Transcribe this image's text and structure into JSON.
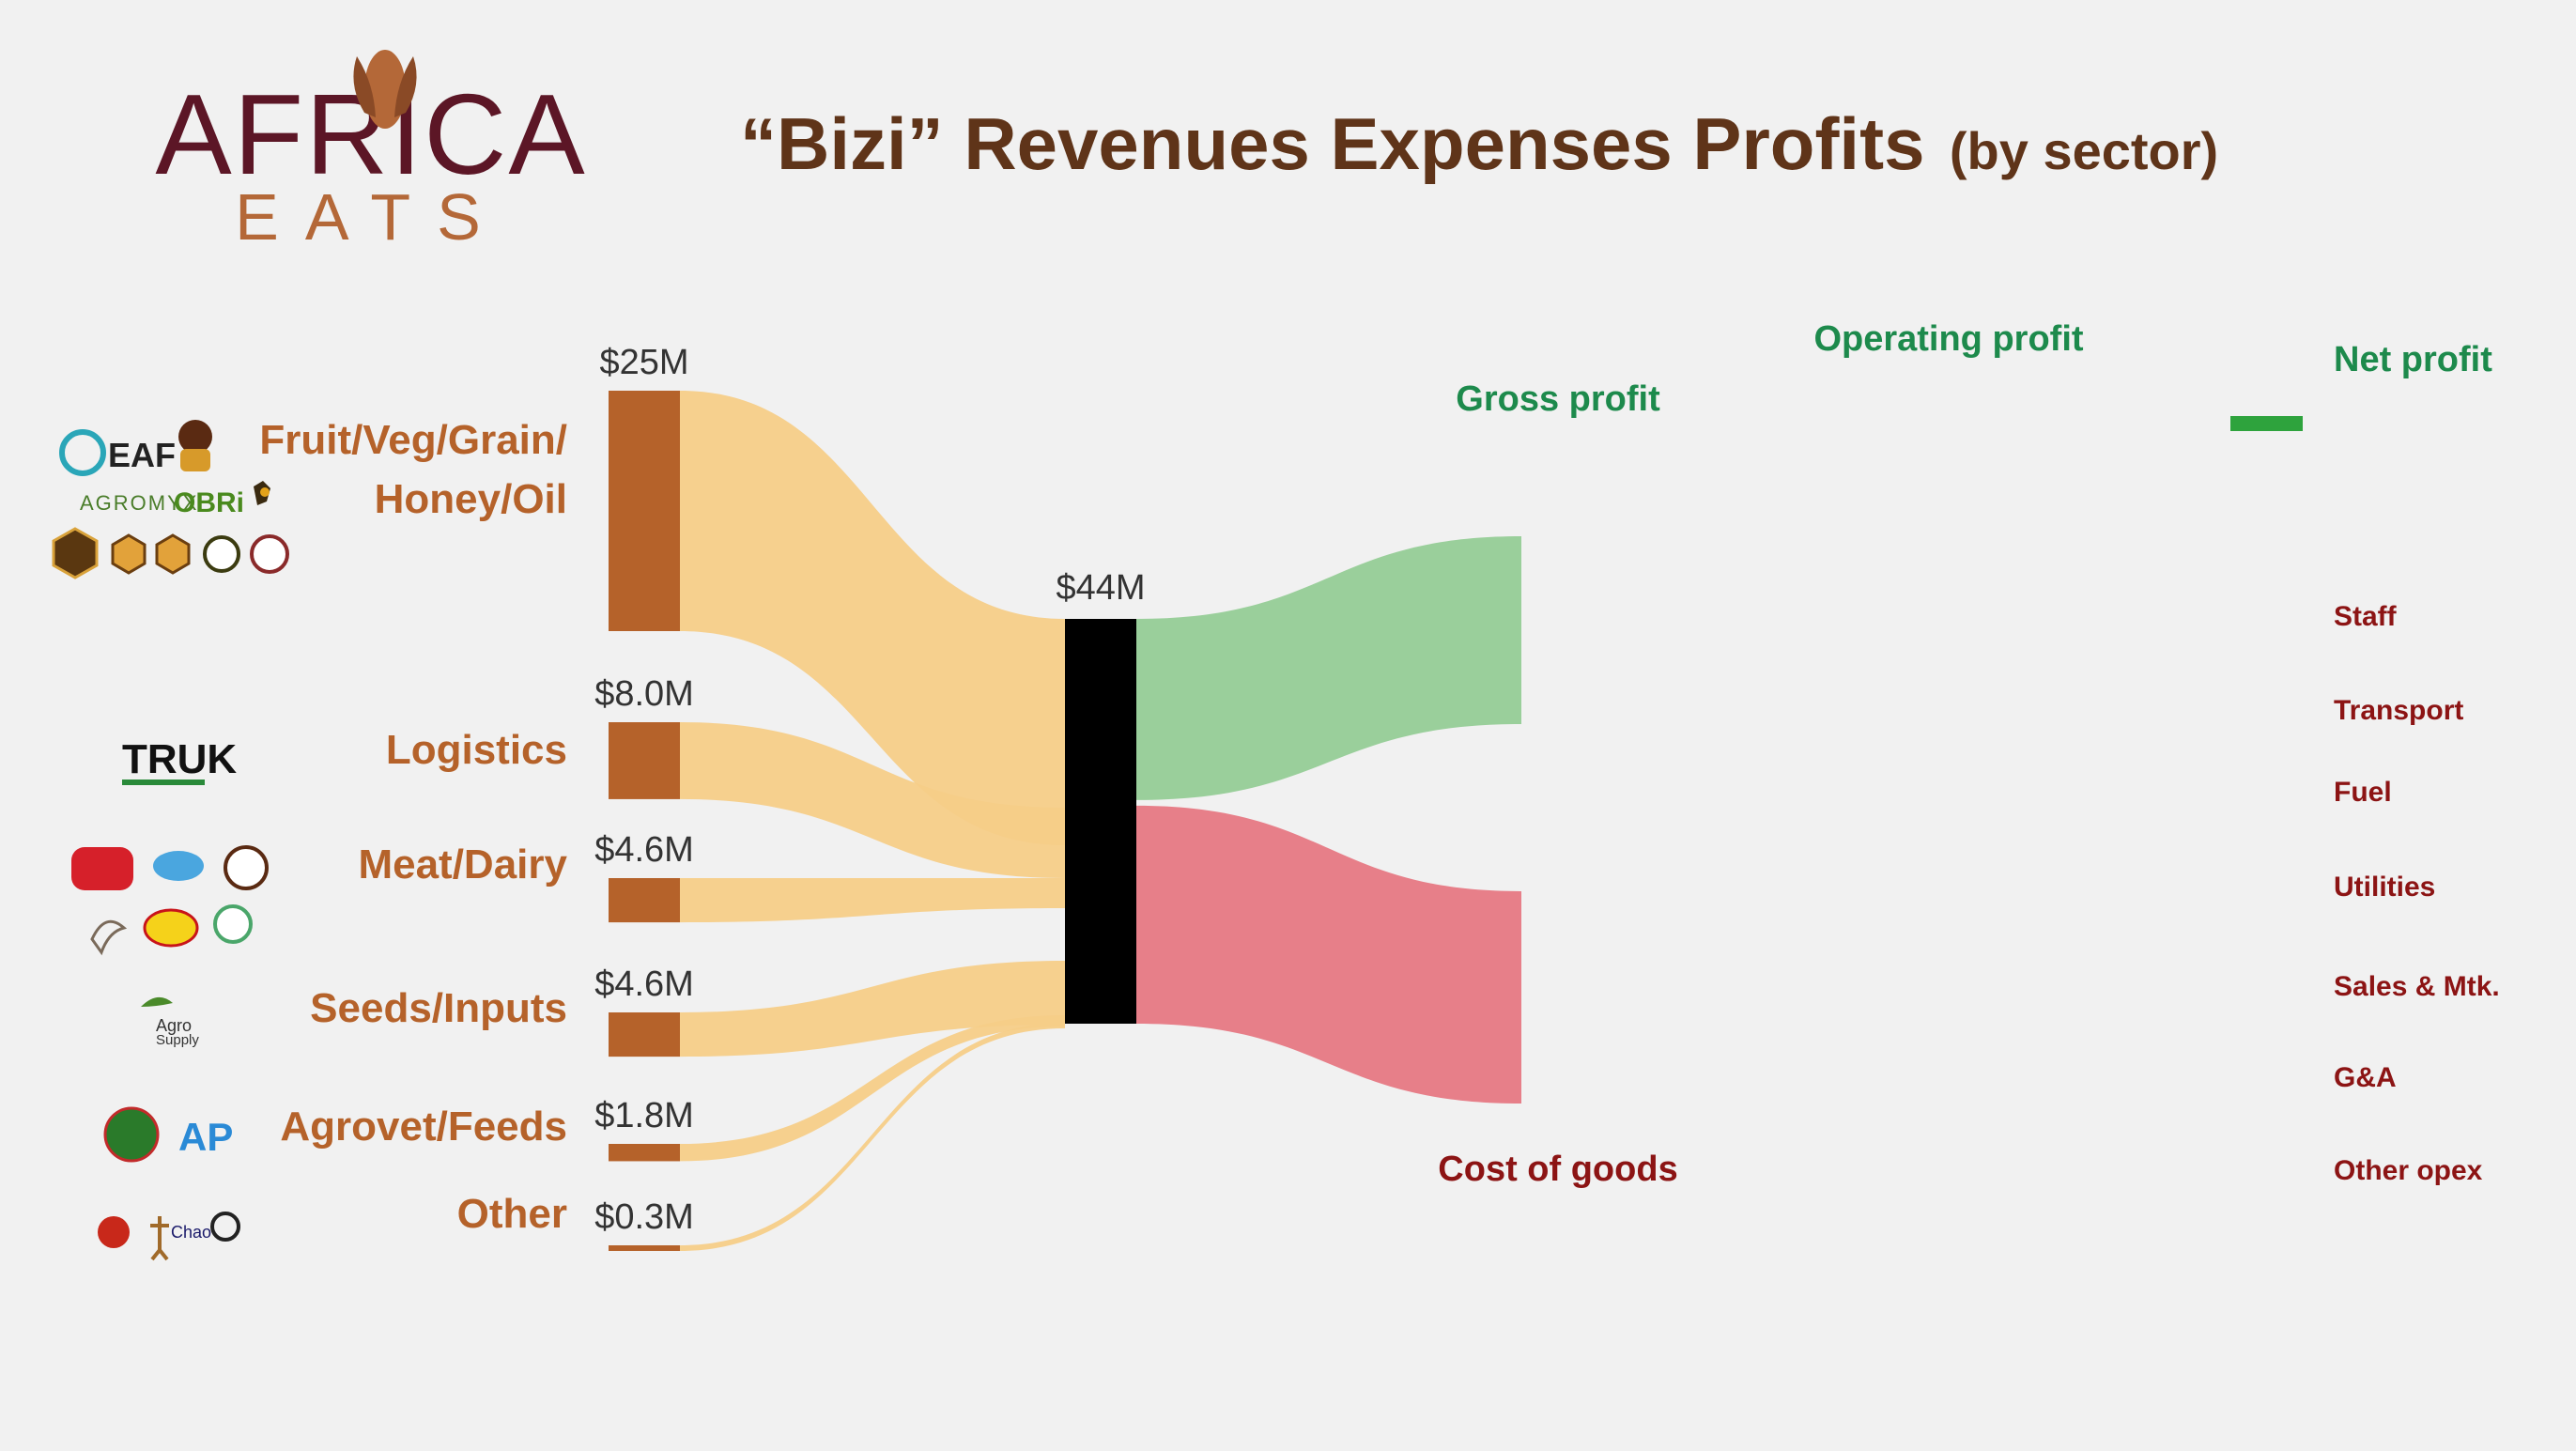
{
  "header": {
    "logo_word_top": "AFRICA",
    "logo_word_bottom": "EATS",
    "title_main": "“Bizi” Revenues Expenses Profits",
    "title_sub": "(by sector)"
  },
  "colors": {
    "sector_node": "#b5622a",
    "sector_label": "#b5622a",
    "source_link": "#f6cd88",
    "total_node": "#000000",
    "gross_profit_link": "#9acf9b",
    "cost_link": "#e77f89",
    "profit_label": "#1d8a4c",
    "net_profit_bar": "#2ea33d",
    "expense_label": "#8c1414",
    "logo_dark": "#5c1626",
    "logo_accent": "#b46838",
    "title": "#5f3419"
  },
  "chart_data": {
    "type": "sankey",
    "unit": "USD millions",
    "sources": [
      {
        "name": "Fruit/Veg/Grain/ Honey/Oil",
        "lines": [
          "Fruit/Veg/Grain/",
          "Honey/Oil"
        ],
        "value": 25,
        "value_label": "$25M",
        "logos": [
          "EAF",
          "Golden pot",
          "AGROMYX",
          "OBRI",
          "honey",
          "Swahili Honey"
        ]
      },
      {
        "name": "Logistics",
        "lines": [
          "Logistics"
        ],
        "value": 8.0,
        "value_label": "$8.0M",
        "logos": [
          "TRUK"
        ]
      },
      {
        "name": "Meat/Dairy",
        "lines": [
          "Meat/Dairy"
        ],
        "value": 4.6,
        "value_label": "$4.6M",
        "logos": [
          "PMP",
          "Chicken"
        ]
      },
      {
        "name": "Seeds/Inputs",
        "lines": [
          "Seeds/Inputs"
        ],
        "value": 4.6,
        "value_label": "$4.6M",
        "logos": [
          "Agro Supply"
        ]
      },
      {
        "name": "Agrovet/Feeds",
        "lines": [
          "Agrovet/Feeds"
        ],
        "value": 1.8,
        "value_label": "$1.8M",
        "logos": [
          "AP"
        ]
      },
      {
        "name": "Other",
        "lines": [
          "Other"
        ],
        "value": 0.3,
        "value_label": "$0.3M",
        "logos": [
          "Chao",
          "Obamawire"
        ]
      }
    ],
    "total": {
      "name": "Revenue",
      "value": 44,
      "value_label": "$44M"
    },
    "targets": [
      {
        "name": "Gross profit",
        "value": 20,
        "kind": "profit"
      },
      {
        "name": "Cost of goods",
        "value": 24,
        "kind": "cost"
      }
    ],
    "profit_labels": [
      "Operating profit",
      "Net profit"
    ],
    "expense_labels": [
      "Staff",
      "Transport",
      "Fuel",
      "Utilities",
      "Sales & Mtk.",
      "G&A",
      "Other opex"
    ]
  }
}
